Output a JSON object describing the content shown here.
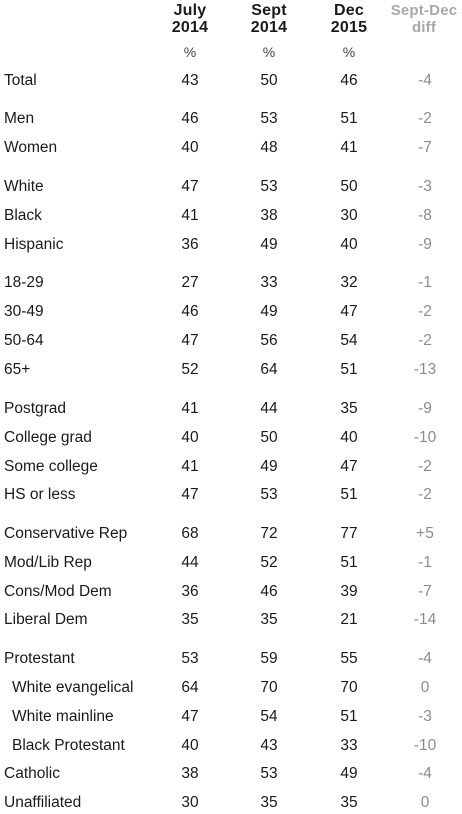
{
  "headers": {
    "col1": [
      "July",
      "2014"
    ],
    "col2": [
      "Sept",
      "2014"
    ],
    "col3": [
      "Dec",
      "2015"
    ],
    "col4": [
      "Sept-Dec",
      "diff"
    ]
  },
  "pct_symbol": "%",
  "rows": [
    {
      "label": "Total",
      "v1": "43",
      "v2": "50",
      "v3": "46",
      "diff": "-4"
    },
    {
      "label": "Men",
      "v1": "46",
      "v2": "53",
      "v3": "51",
      "diff": "-2"
    },
    {
      "label": "Women",
      "v1": "40",
      "v2": "48",
      "v3": "41",
      "diff": "-7"
    },
    {
      "label": "White",
      "v1": "47",
      "v2": "53",
      "v3": "50",
      "diff": "-3"
    },
    {
      "label": "Black",
      "v1": "41",
      "v2": "38",
      "v3": "30",
      "diff": "-8"
    },
    {
      "label": "Hispanic",
      "v1": "36",
      "v2": "49",
      "v3": "40",
      "diff": "-9"
    },
    {
      "label": "18-29",
      "v1": "27",
      "v2": "33",
      "v3": "32",
      "diff": "-1"
    },
    {
      "label": "30-49",
      "v1": "46",
      "v2": "49",
      "v3": "47",
      "diff": "-2"
    },
    {
      "label": "50-64",
      "v1": "47",
      "v2": "56",
      "v3": "54",
      "diff": "-2"
    },
    {
      "label": "65+",
      "v1": "52",
      "v2": "64",
      "v3": "51",
      "diff": "-13"
    },
    {
      "label": "Postgrad",
      "v1": "41",
      "v2": "44",
      "v3": "35",
      "diff": "-9"
    },
    {
      "label": "College grad",
      "v1": "40",
      "v2": "50",
      "v3": "40",
      "diff": "-10"
    },
    {
      "label": "Some college",
      "v1": "41",
      "v2": "49",
      "v3": "47",
      "diff": "-2"
    },
    {
      "label": "HS or less",
      "v1": "47",
      "v2": "53",
      "v3": "51",
      "diff": "-2"
    },
    {
      "label": "Conservative Rep",
      "v1": "68",
      "v2": "72",
      "v3": "77",
      "diff": "+5"
    },
    {
      "label": "Mod/Lib Rep",
      "v1": "44",
      "v2": "52",
      "v3": "51",
      "diff": "-1"
    },
    {
      "label": "Cons/Mod Dem",
      "v1": "36",
      "v2": "46",
      "v3": "39",
      "diff": "-7"
    },
    {
      "label": "Liberal Dem",
      "v1": "35",
      "v2": "35",
      "v3": "21",
      "diff": "-14"
    },
    {
      "label": "Protestant",
      "v1": "53",
      "v2": "59",
      "v3": "55",
      "diff": "-4"
    },
    {
      "label": "White evangelical",
      "v1": "64",
      "v2": "70",
      "v3": "70",
      "diff": "0"
    },
    {
      "label": "White mainline",
      "v1": "47",
      "v2": "54",
      "v3": "51",
      "diff": "-3"
    },
    {
      "label": "Black Protestant",
      "v1": "40",
      "v2": "43",
      "v3": "33",
      "diff": "-10"
    },
    {
      "label": "Catholic",
      "v1": "38",
      "v2": "53",
      "v3": "49",
      "diff": "-4"
    },
    {
      "label": "Unaffiliated",
      "v1": "30",
      "v2": "35",
      "v3": "35",
      "diff": "0"
    }
  ]
}
